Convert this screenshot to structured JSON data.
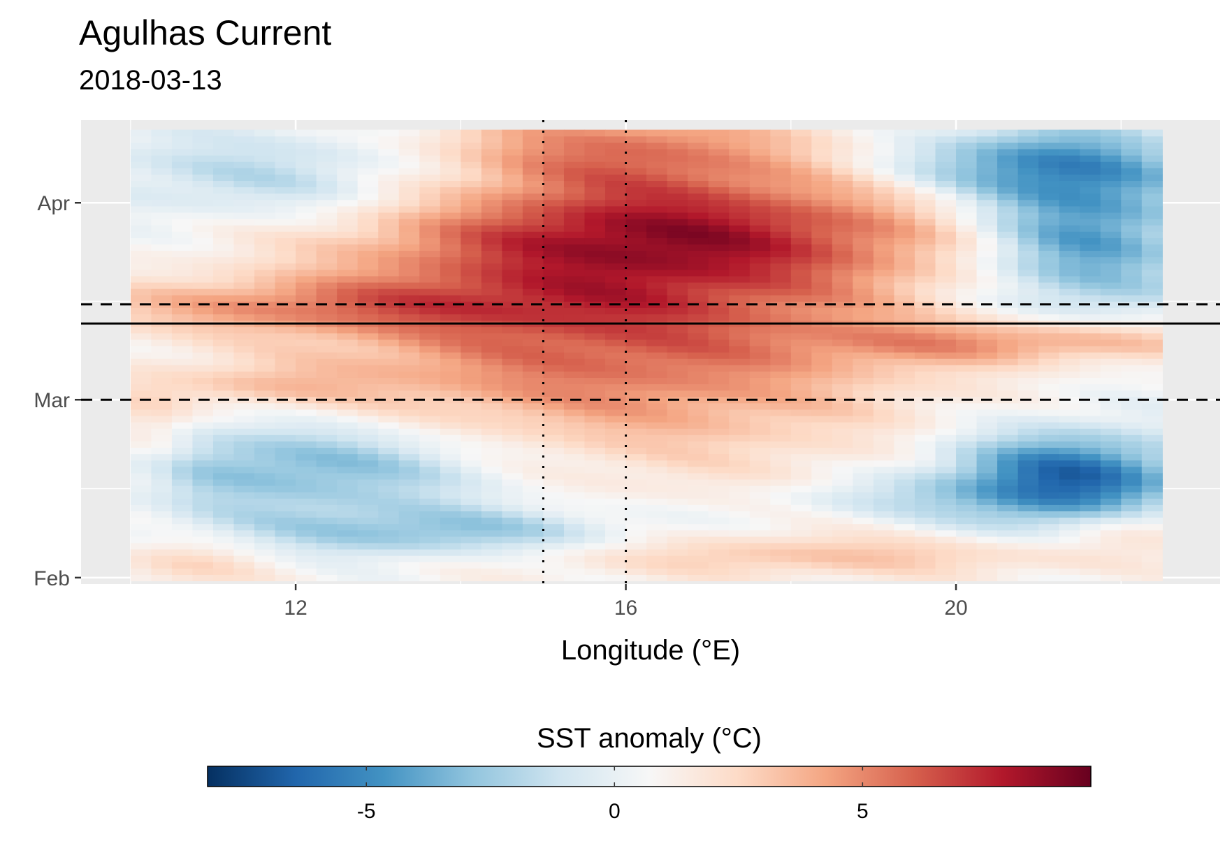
{
  "chart_data": {
    "type": "heatmap",
    "title": "Agulhas Current",
    "subtitle": "2018-03-13",
    "xlabel": "Longitude (°E)",
    "ylabel": "",
    "x_ticks": [
      12,
      16,
      20
    ],
    "y_ticks": [
      {
        "date": "2018-02-01",
        "label": "Feb"
      },
      {
        "date": "2018-03-01",
        "label": "Mar"
      },
      {
        "date": "2018-04-01",
        "label": "Apr"
      }
    ],
    "xlim": [
      9.4,
      23.2
    ],
    "ylim": [
      "2018-01-31",
      "2018-04-14"
    ],
    "grid": true,
    "x_range": [
      10,
      22.5
    ],
    "date_range": [
      "2018-02-01",
      "2018-04-12"
    ],
    "colorscale": [
      "#053061",
      "#2166ac",
      "#4393c3",
      "#92c5de",
      "#d1e5f0",
      "#f7f7f7",
      "#fddbc7",
      "#f4a582",
      "#d6604d",
      "#b2182b",
      "#67001f"
    ],
    "reference_lines": {
      "event_date": "2018-03-13",
      "event_start": "2018-03-01",
      "event_end": "2018-03-16",
      "longitude_lines": [
        15,
        16
      ]
    },
    "legend": {
      "title": "SST anomaly (°C)",
      "position": "bottom",
      "limits": [
        -8.2,
        9.6
      ],
      "ticks": [
        -5,
        0,
        5
      ]
    },
    "features": [
      {
        "name": "warm-core",
        "lon": 15.9,
        "t": 0.57,
        "rx": 3.6,
        "ry": 0.3,
        "a": 6.0
      },
      {
        "name": "warm-upper",
        "lon": 16.6,
        "t": 0.78,
        "rx": 3.6,
        "ry": 0.13,
        "a": 5.0
      },
      {
        "name": "warm-top",
        "lon": 15.8,
        "t": 0.97,
        "rx": 2.4,
        "ry": 0.1,
        "a": 4.0
      },
      {
        "name": "warm-band-west",
        "lon": 12.0,
        "t": 0.61,
        "rx": 3.0,
        "ry": 0.06,
        "a": 3.2
      },
      {
        "name": "warm-west-mid",
        "lon": 11.5,
        "t": 0.43,
        "rx": 1.6,
        "ry": 0.05,
        "a": 2.0
      },
      {
        "name": "warm-east-band",
        "lon": 21.0,
        "t": 0.53,
        "rx": 2.3,
        "ry": 0.05,
        "a": 4.0
      },
      {
        "name": "warm-bottom",
        "lon": 18.5,
        "t": 0.05,
        "rx": 4.0,
        "ry": 0.05,
        "a": 2.6
      },
      {
        "name": "warm-west-bottom",
        "lon": 10.7,
        "t": 0.03,
        "rx": 1.0,
        "ry": 0.06,
        "a": 2.0
      },
      {
        "name": "warm-west-edge",
        "lon": 10.2,
        "t": 0.3,
        "rx": 0.5,
        "ry": 0.12,
        "a": 2.0
      },
      {
        "name": "warm-se-corner",
        "lon": 22.2,
        "t": 0.12,
        "rx": 0.9,
        "ry": 0.05,
        "a": 2.0
      },
      {
        "name": "cold-west-lower",
        "lon": 12.2,
        "t": 0.25,
        "rx": 2.6,
        "ry": 0.11,
        "a": -4.2
      },
      {
        "name": "cold-west-low2",
        "lon": 13.8,
        "t": 0.1,
        "rx": 2.5,
        "ry": 0.06,
        "a": -3.5
      },
      {
        "name": "cold-west-top",
        "lon": 12.2,
        "t": 0.9,
        "rx": 2.5,
        "ry": 0.12,
        "a": -3.0
      },
      {
        "name": "cold-east-lower",
        "lon": 21.3,
        "t": 0.22,
        "rx": 1.5,
        "ry": 0.11,
        "a": -6.8
      },
      {
        "name": "cold-east-upper",
        "lon": 21.5,
        "t": 0.78,
        "rx": 1.4,
        "ry": 0.2,
        "a": -5.5
      },
      {
        "name": "cold-east-top",
        "lon": 20.6,
        "t": 0.93,
        "rx": 1.8,
        "ry": 0.08,
        "a": -3.5
      },
      {
        "name": "cold-mid-low",
        "lon": 19.0,
        "t": 0.18,
        "rx": 1.5,
        "ry": 0.05,
        "a": -1.5
      }
    ]
  }
}
